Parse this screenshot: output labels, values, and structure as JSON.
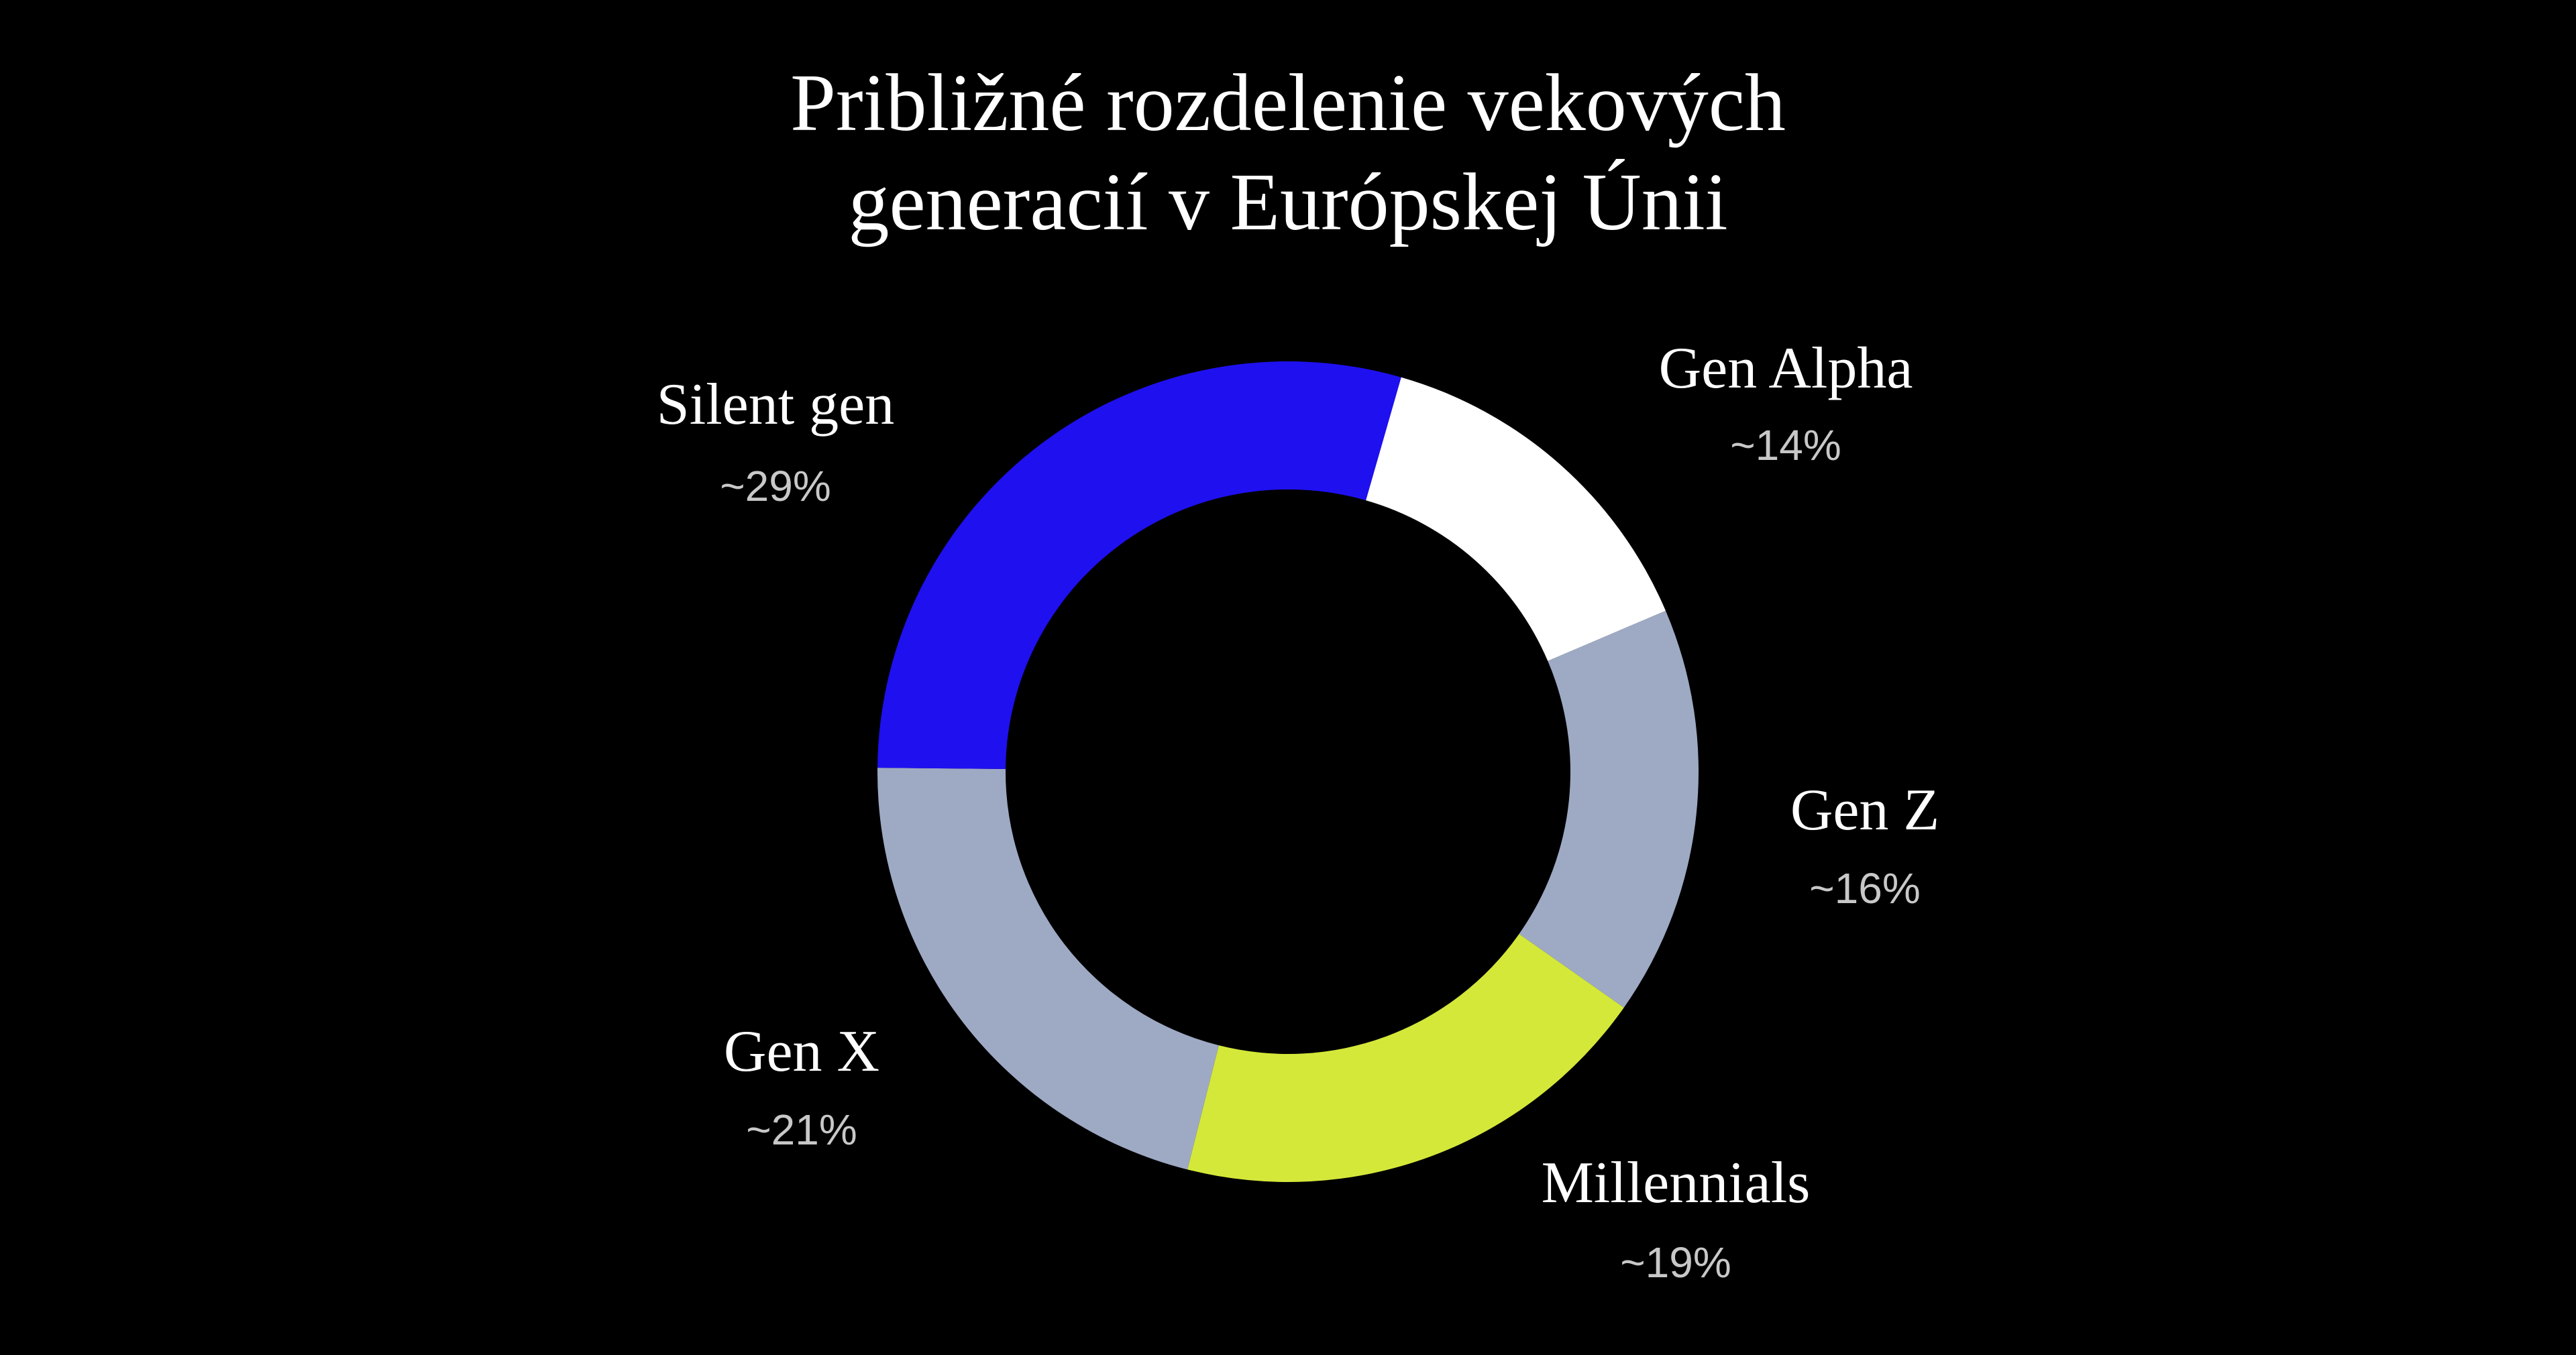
{
  "chart_data": {
    "type": "donut",
    "title": "Približné rozdelenie vekových generacií v Európskej Únii",
    "categories": [
      "Gen Alpha",
      "Gen Z",
      "Millennials",
      "Gen X",
      "Silent gen"
    ],
    "values": [
      14,
      16,
      19,
      21,
      29
    ],
    "value_labels": [
      "~14%",
      "~16%",
      "~19%",
      "~21%",
      "~29%"
    ],
    "colors": [
      "#ffffff",
      "#9eaac4",
      "#d4e83a",
      "#9eaac4",
      "#1f10f0"
    ]
  }
}
